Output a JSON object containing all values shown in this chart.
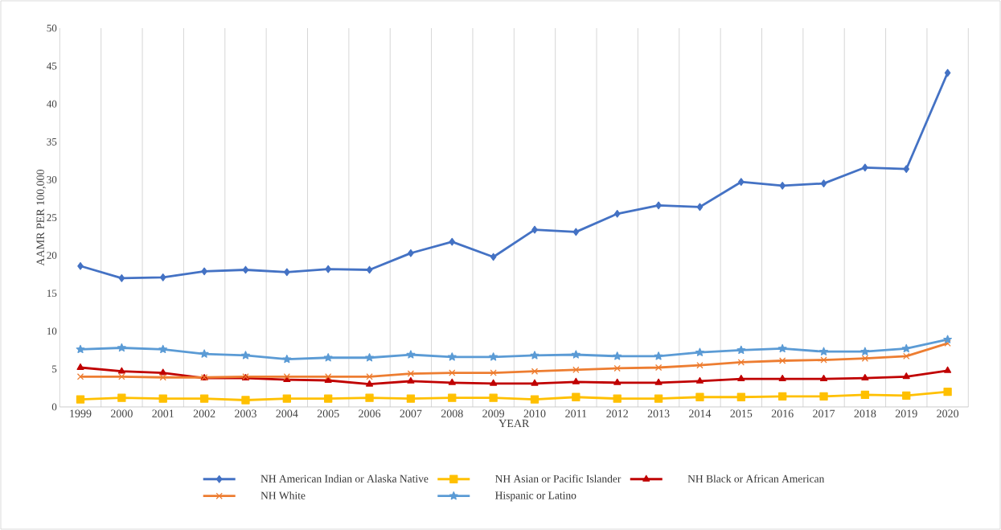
{
  "chart_data": {
    "type": "line",
    "xlabel": "YEAR",
    "ylabel": "AAMR PER 100,000",
    "categories": [
      "1999",
      "2000",
      "2001",
      "2002",
      "2003",
      "2004",
      "2005",
      "2006",
      "2007",
      "2008",
      "2009",
      "2010",
      "2011",
      "2012",
      "2013",
      "2014",
      "2015",
      "2016",
      "2017",
      "2018",
      "2019",
      "2020"
    ],
    "ylim": [
      0,
      50
    ],
    "yticks": [
      0,
      5,
      10,
      15,
      20,
      25,
      30,
      35,
      40,
      45,
      50
    ],
    "grid": "x",
    "legend": "bottom",
    "line_style": "solid",
    "series": [
      {
        "name": "NH American Indian or Alaska Native",
        "color": "#4472c4",
        "marker": "diamond",
        "values": [
          18.6,
          17.0,
          17.1,
          17.9,
          18.1,
          17.8,
          18.2,
          18.1,
          20.3,
          21.8,
          19.8,
          23.4,
          23.1,
          25.5,
          26.6,
          26.4,
          29.7,
          29.2,
          29.5,
          31.6,
          31.4,
          44.1
        ]
      },
      {
        "name": "NH Asian or Pacific Islander",
        "color": "#ffc000",
        "marker": "square",
        "values": [
          1.0,
          1.2,
          1.1,
          1.1,
          0.9,
          1.1,
          1.1,
          1.2,
          1.1,
          1.2,
          1.2,
          1.0,
          1.3,
          1.1,
          1.1,
          1.3,
          1.3,
          1.4,
          1.4,
          1.6,
          1.5,
          2.0
        ]
      },
      {
        "name": "NH Black or African American",
        "color": "#c00000",
        "marker": "triangle",
        "values": [
          5.2,
          4.7,
          4.5,
          3.8,
          3.8,
          3.6,
          3.5,
          3.0,
          3.4,
          3.2,
          3.1,
          3.1,
          3.3,
          3.2,
          3.2,
          3.4,
          3.7,
          3.7,
          3.7,
          3.8,
          4.0,
          4.8
        ]
      },
      {
        "name": "NH White",
        "color": "#ed7d31",
        "marker": "cross",
        "values": [
          4.0,
          4.0,
          3.9,
          3.9,
          4.0,
          4.0,
          4.0,
          4.0,
          4.4,
          4.5,
          4.5,
          4.7,
          4.9,
          5.1,
          5.2,
          5.5,
          5.9,
          6.1,
          6.2,
          6.4,
          6.7,
          8.4
        ]
      },
      {
        "name": "Hispanic or Latino",
        "color": "#5b9bd5",
        "marker": "star",
        "values": [
          7.6,
          7.8,
          7.6,
          7.0,
          6.8,
          6.3,
          6.5,
          6.5,
          6.9,
          6.6,
          6.6,
          6.8,
          6.9,
          6.7,
          6.7,
          7.2,
          7.5,
          7.7,
          7.3,
          7.3,
          7.7,
          8.9
        ]
      }
    ]
  }
}
